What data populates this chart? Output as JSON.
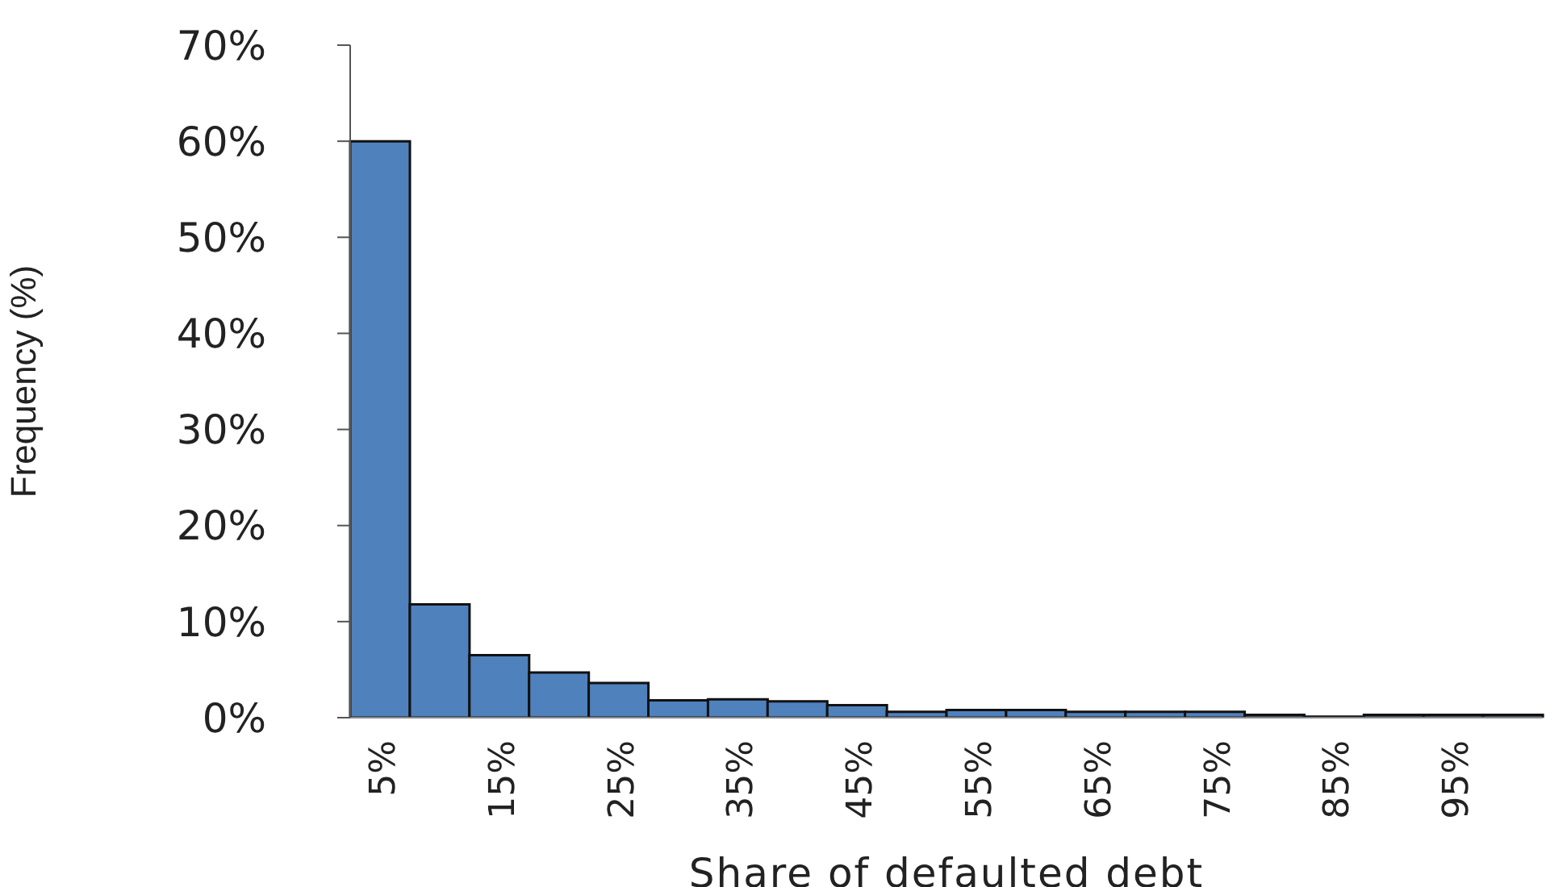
{
  "chart_data": {
    "type": "bar",
    "xlabel": "Share of defaulted debt",
    "ylabel": "Frequency (%)",
    "categories": [
      "5%",
      null,
      "15%",
      null,
      "25%",
      null,
      "35%",
      null,
      "45%",
      null,
      "55%",
      null,
      "65%",
      null,
      "75%",
      null,
      "85%",
      null,
      "95%",
      null
    ],
    "values": [
      60,
      11.8,
      6.5,
      4.7,
      3.6,
      1.8,
      1.9,
      1.7,
      1.3,
      0.6,
      0.8,
      0.8,
      0.6,
      0.6,
      0.6,
      0.3,
      0.1,
      0.3,
      0.3,
      0.3
    ],
    "color": "#4f81bd",
    "ylim": [
      0,
      70
    ],
    "yticks": [
      {
        "value": 0,
        "label": "0%"
      },
      {
        "value": 10,
        "label": "10%"
      },
      {
        "value": 20,
        "label": "20%"
      },
      {
        "value": 30,
        "label": "30%"
      },
      {
        "value": 40,
        "label": "40%"
      },
      {
        "value": 50,
        "label": "50%"
      },
      {
        "value": 60,
        "label": "60%"
      },
      {
        "value": 70,
        "label": "70%"
      }
    ],
    "grid": false,
    "legend": false
  }
}
